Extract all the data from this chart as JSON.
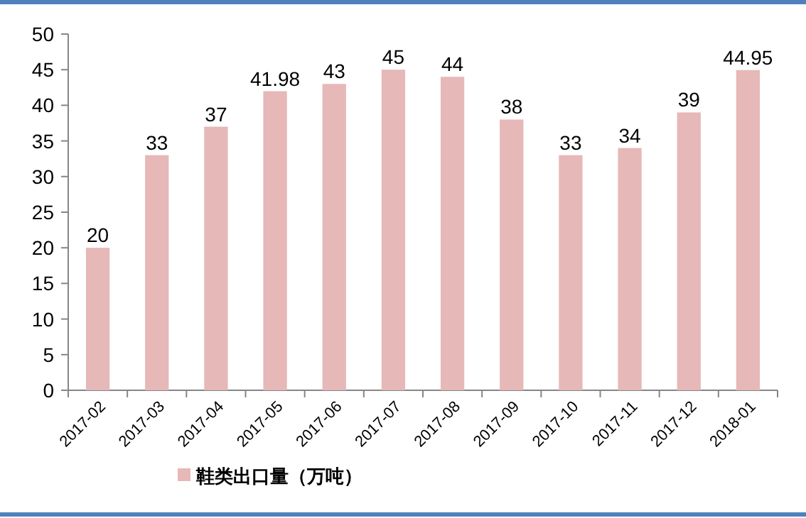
{
  "chart_data": {
    "type": "bar",
    "categories": [
      "2017-02",
      "2017-03",
      "2017-04",
      "2017-05",
      "2017-06",
      "2017-07",
      "2017-08",
      "2017-09",
      "2017-10",
      "2017-11",
      "2017-12",
      "2018-01"
    ],
    "series": [
      {
        "name": "鞋类出口量（万吨）",
        "color": "#e6b8b7",
        "values": [
          20,
          33,
          37,
          41.98,
          43,
          45,
          44,
          38,
          33,
          34,
          39,
          44.95
        ]
      }
    ],
    "ylim": [
      0,
      50
    ],
    "yticks": [
      0,
      5,
      10,
      15,
      20,
      25,
      30,
      35,
      40,
      45,
      50
    ],
    "data_labels": true,
    "legend": "bottom",
    "grid": false
  }
}
